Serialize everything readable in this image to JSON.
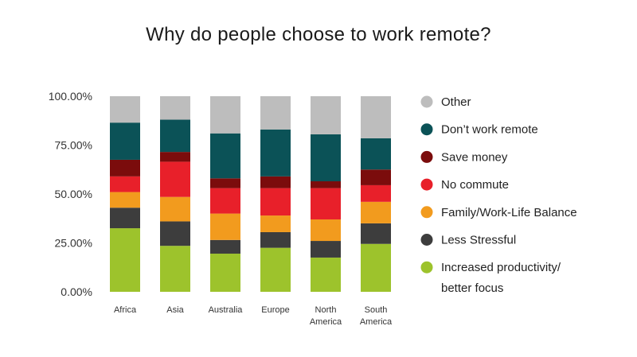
{
  "chart_data": {
    "type": "bar",
    "stacked": true,
    "title": "Why do people choose to work remote?",
    "xlabel": "",
    "ylabel": "",
    "ylim": [
      0,
      100
    ],
    "y_ticks": [
      "0.00%",
      "25.00%",
      "50.00%",
      "75.00%",
      "100.00%"
    ],
    "y_tick_values": [
      0,
      25,
      50,
      75,
      100
    ],
    "grid": false,
    "legend_position": "right",
    "categories": [
      [
        "Africa"
      ],
      [
        "Asia"
      ],
      [
        "Australia"
      ],
      [
        "Europe"
      ],
      [
        "North",
        "America"
      ],
      [
        "South",
        "America"
      ]
    ],
    "series": [
      {
        "name": "Increased productivity/ better focus",
        "label_lines": [
          "Increased productivity/",
          "better focus"
        ],
        "color": "#9dc32c",
        "values": [
          32.5,
          23.5,
          19.5,
          22.5,
          17.5,
          24.5
        ]
      },
      {
        "name": "Less Stressful",
        "label_lines": [
          "Less Stressful"
        ],
        "color": "#3d3d3d",
        "values": [
          10.5,
          12.5,
          7,
          8,
          8.5,
          10.5
        ]
      },
      {
        "name": "Family/Work-Life Balance",
        "label_lines": [
          "Family/Work-Life Balance"
        ],
        "color": "#f29b1e",
        "values": [
          8,
          12.5,
          13.5,
          8.5,
          11,
          11
        ]
      },
      {
        "name": "No commute",
        "label_lines": [
          "No commute"
        ],
        "color": "#e8202a",
        "values": [
          8,
          18,
          13,
          14,
          16,
          8.5
        ]
      },
      {
        "name": "Save money",
        "label_lines": [
          "Save money"
        ],
        "color": "#7b0c0c",
        "values": [
          8.5,
          5,
          5,
          6,
          3.5,
          8
        ]
      },
      {
        "name": "Don't work remote",
        "label_lines": [
          "Don’t work remote"
        ],
        "color": "#0b5257",
        "values": [
          19,
          16.5,
          23,
          24,
          24,
          16
        ]
      },
      {
        "name": "Other",
        "label_lines": [
          "Other"
        ],
        "color": "#bdbdbd",
        "values": [
          13.5,
          12,
          19,
          17,
          19.5,
          21.5
        ]
      }
    ]
  }
}
